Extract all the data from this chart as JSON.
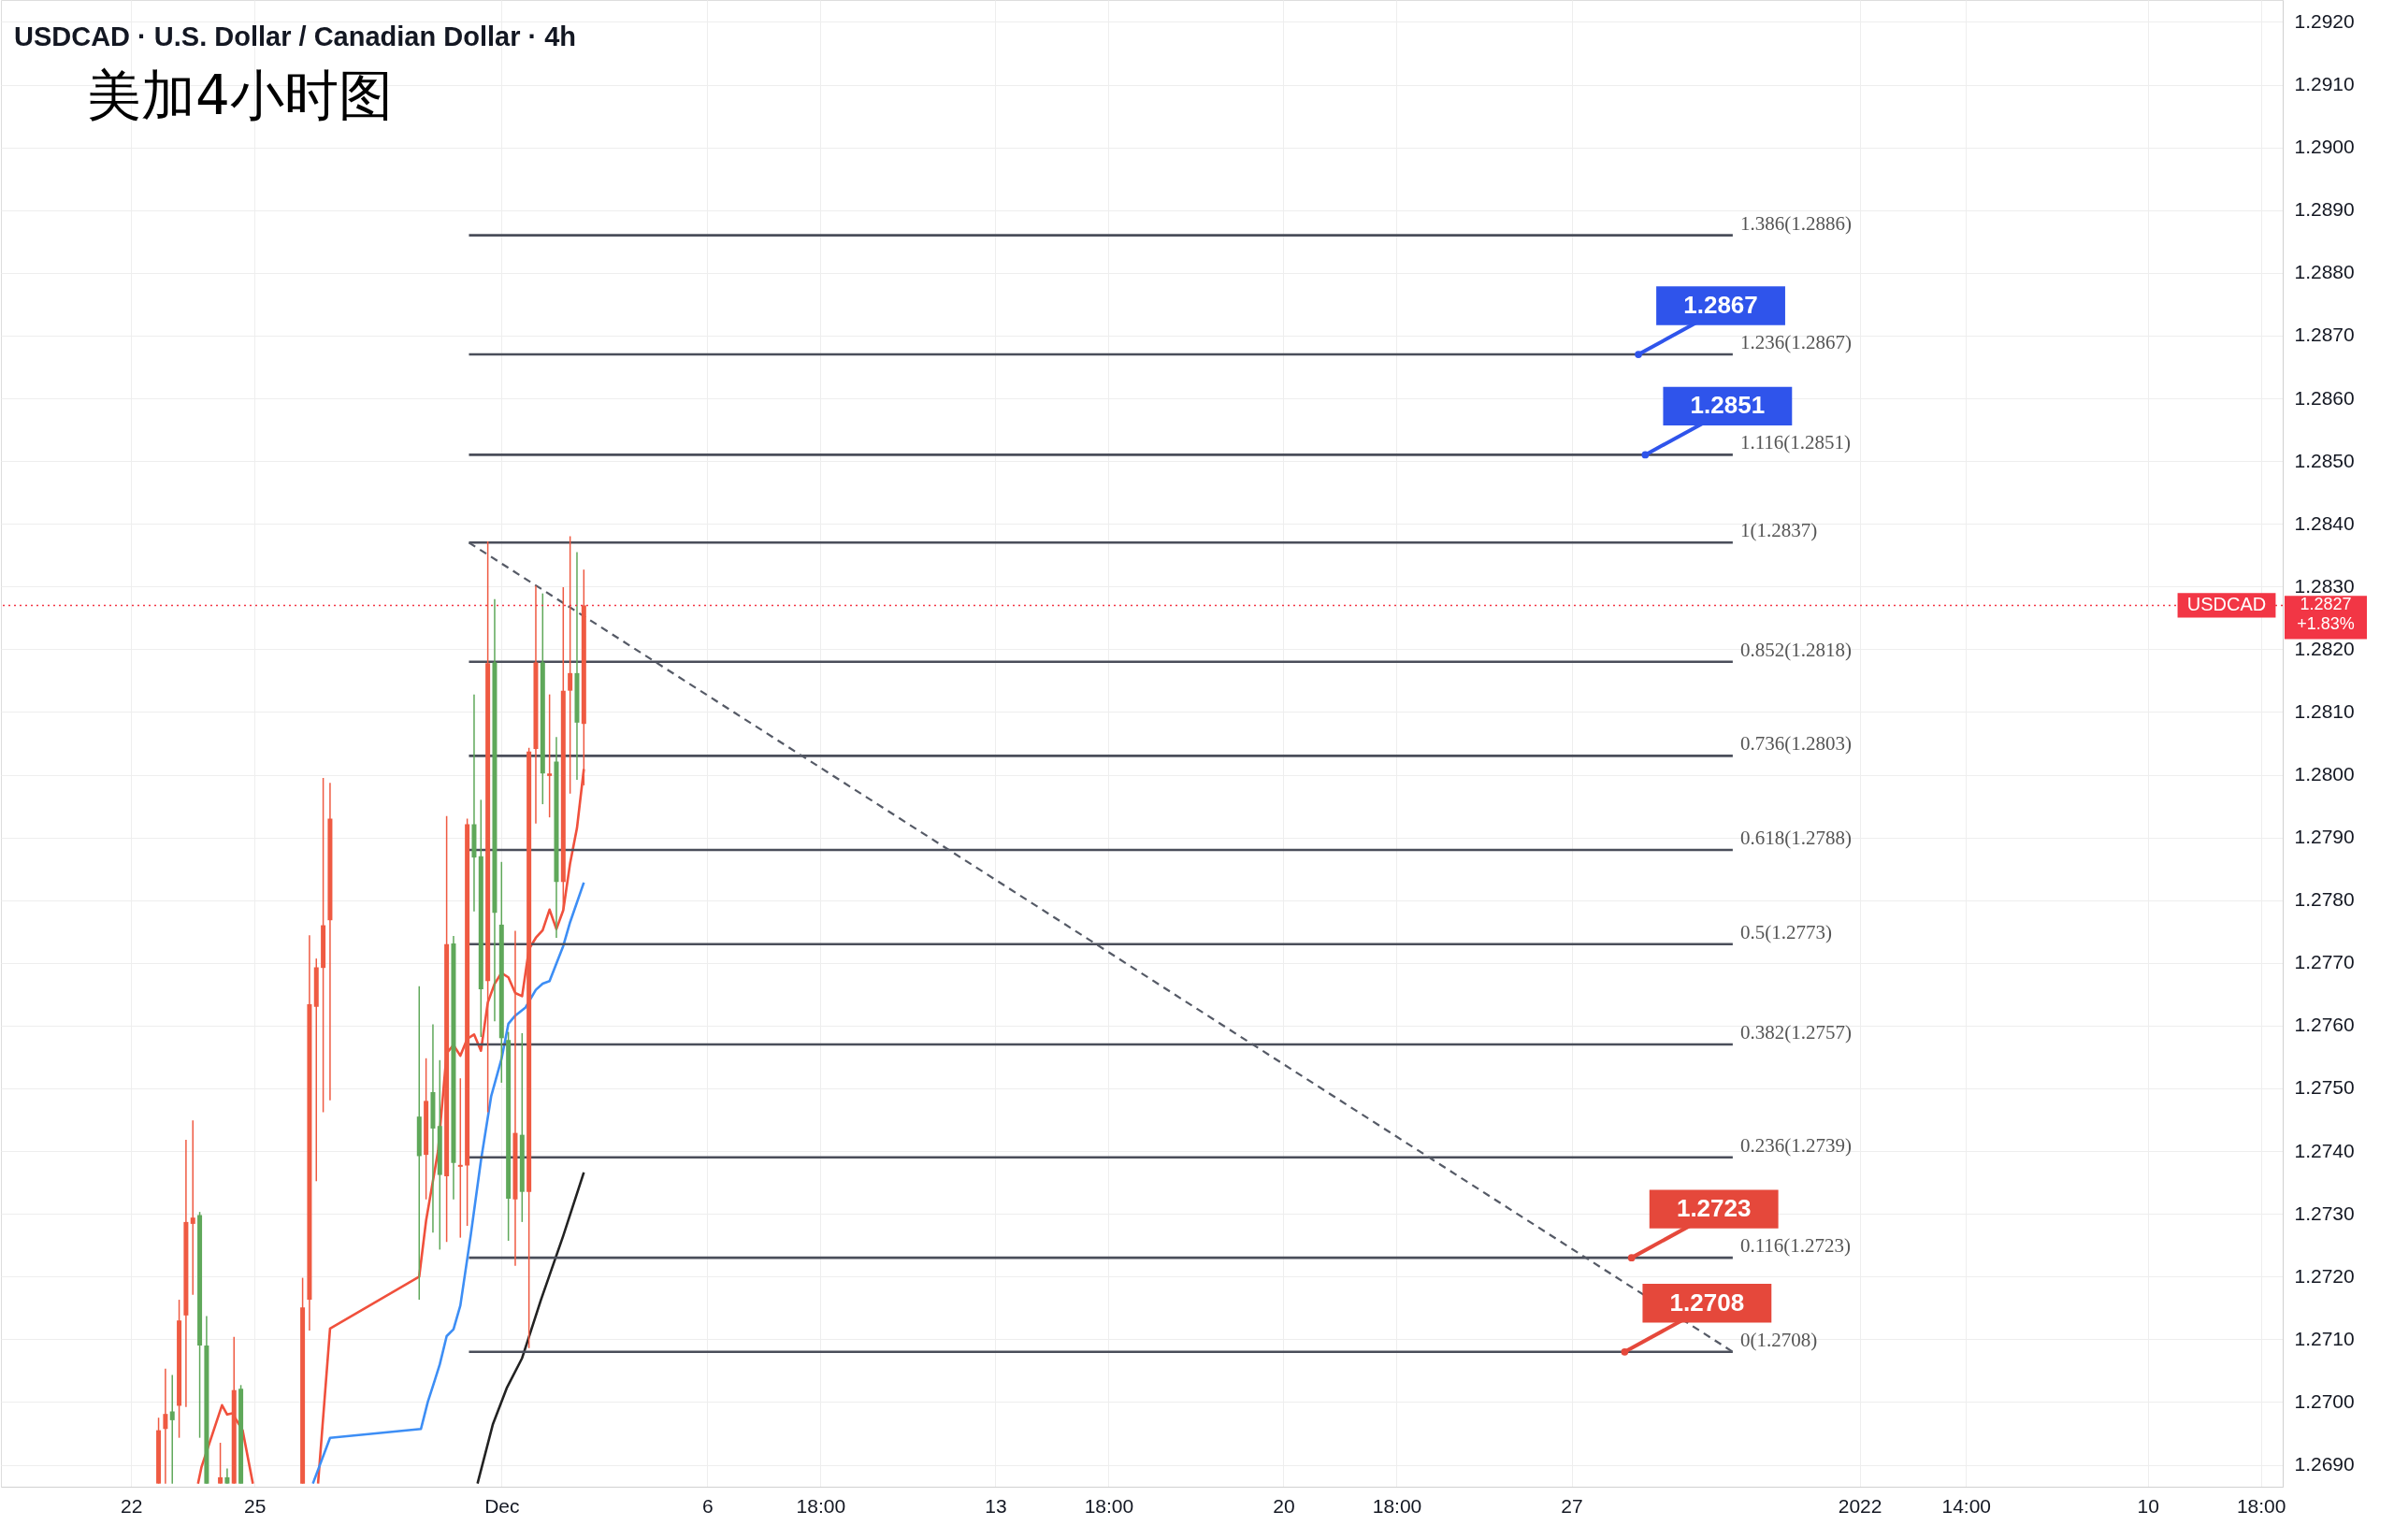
{
  "chart_data": {
    "type": "candlestick",
    "title": "USDCAD · U.S. Dollar / Canadian Dollar · 4h",
    "subtitle": "美加4小时图",
    "xlim": [
      "2021-11-18T22:48",
      "2022-01-13T04:00"
    ],
    "ylim": [
      1.26865,
      1.29235
    ],
    "xticks": [
      {
        "value": "2021-11-22",
        "label": "22"
      },
      {
        "value": "2021-11-25",
        "label": "25"
      },
      {
        "value": "2021-12-01",
        "label": "Dec"
      },
      {
        "value": "2021-12-06",
        "label": "6"
      },
      {
        "value": "2021-12-08T18:00",
        "label": "18:00"
      },
      {
        "value": "2021-12-13",
        "label": "13"
      },
      {
        "value": "2021-12-15T18:00",
        "label": "18:00"
      },
      {
        "value": "2021-12-20",
        "label": "20"
      },
      {
        "value": "2021-12-22T18:00",
        "label": "18:00"
      },
      {
        "value": "2021-12-27",
        "label": "27"
      },
      {
        "value": "2022-01-03",
        "label": "2022"
      },
      {
        "value": "2022-01-05T14:00",
        "label": "14:00"
      },
      {
        "value": "2022-01-10",
        "label": "10"
      },
      {
        "value": "2022-01-12T18:00",
        "label": "18:00"
      }
    ],
    "yticks": [
      {
        "value": 1.269,
        "label": "1.2690"
      },
      {
        "value": 1.27,
        "label": "1.2700"
      },
      {
        "value": 1.271,
        "label": "1.2710"
      },
      {
        "value": 1.272,
        "label": "1.2720"
      },
      {
        "value": 1.273,
        "label": "1.2730"
      },
      {
        "value": 1.274,
        "label": "1.2740"
      },
      {
        "value": 1.275,
        "label": "1.2750"
      },
      {
        "value": 1.276,
        "label": "1.2760"
      },
      {
        "value": 1.277,
        "label": "1.2770"
      },
      {
        "value": 1.278,
        "label": "1.2780"
      },
      {
        "value": 1.279,
        "label": "1.2790"
      },
      {
        "value": 1.28,
        "label": "1.2800"
      },
      {
        "value": 1.281,
        "label": "1.2810"
      },
      {
        "value": 1.282,
        "label": "1.2820"
      },
      {
        "value": 1.283,
        "label": "1.2830"
      },
      {
        "value": 1.284,
        "label": "1.2840"
      },
      {
        "value": 1.285,
        "label": "1.2850"
      },
      {
        "value": 1.286,
        "label": "1.2860"
      },
      {
        "value": 1.287,
        "label": "1.2870"
      },
      {
        "value": 1.288,
        "label": "1.2880"
      },
      {
        "value": 1.289,
        "label": "1.2890"
      },
      {
        "value": 1.29,
        "label": "1.2900"
      },
      {
        "value": 1.291,
        "label": "1.2910"
      },
      {
        "value": 1.292,
        "label": "1.2920"
      }
    ],
    "grid": true,
    "series": [
      {
        "type": "candlestick",
        "x": [
          "2021-11-22T16:00",
          "2021-11-22T20:00",
          "2021-11-23T00:00",
          "2021-11-23T04:00",
          "2021-11-23T08:00",
          "2021-11-23T12:00",
          "2021-11-23T16:00",
          "2021-11-23T20:00",
          "2021-11-24T04:00",
          "2021-11-24T08:00",
          "2021-11-24T12:00",
          "2021-11-24T16:00",
          "2021-11-26T04:00",
          "2021-11-26T08:00",
          "2021-11-26T12:00",
          "2021-11-26T16:00",
          "2021-11-26T20:00",
          "2021-11-29T00:00",
          "2021-11-29T04:00",
          "2021-11-29T08:00",
          "2021-11-29T12:00",
          "2021-11-29T16:00",
          "2021-11-29T20:00",
          "2021-11-30T00:00",
          "2021-11-30T04:00",
          "2021-11-30T08:00",
          "2021-11-30T12:00",
          "2021-11-30T16:00",
          "2021-11-30T20:00",
          "2021-12-01T00:00",
          "2021-12-01T04:00",
          "2021-12-01T08:00",
          "2021-12-01T12:00",
          "2021-12-01T16:00",
          "2021-12-01T20:00",
          "2021-12-02T00:00",
          "2021-12-02T04:00",
          "2021-12-02T08:00",
          "2021-12-02T12:00",
          "2021-12-02T16:00",
          "2021-12-02T20:00",
          "2021-12-03T00:00"
        ],
        "ohlc": [
          [
            1.2687,
            1.26975,
            1.2687,
            1.26955
          ],
          [
            1.26957,
            1.27053,
            1.2687,
            1.26981
          ],
          [
            1.26985,
            1.27043,
            1.2687,
            1.26971
          ],
          [
            1.26994,
            1.27163,
            1.26943,
            1.2713
          ],
          [
            1.27138,
            1.27418,
            1.26992,
            1.27287
          ],
          [
            1.27284,
            1.27449,
            1.27171,
            1.27294
          ],
          [
            1.27298,
            1.27303,
            1.26943,
            1.2709
          ],
          [
            1.2709,
            1.27137,
            1.2687,
            1.2687
          ],
          [
            1.2687,
            1.26935,
            1.2687,
            1.2688
          ],
          [
            1.2688,
            1.26894,
            1.2687,
            1.2687
          ],
          [
            1.2687,
            1.27104,
            1.2687,
            1.27019
          ],
          [
            1.27021,
            1.27027,
            1.2687,
            1.2687
          ],
          [
            1.2687,
            1.27198,
            1.2687,
            1.27151
          ],
          [
            1.27163,
            1.27744,
            1.27114,
            1.27634
          ],
          [
            1.2763,
            1.27707,
            1.27352,
            1.27693
          ],
          [
            1.27692,
            1.27995,
            1.27462,
            1.2776
          ],
          [
            1.27768,
            1.27987,
            1.27481,
            1.2793
          ],
          [
            1.27455,
            1.27663,
            1.27163,
            1.27392
          ],
          [
            1.27394,
            1.27548,
            1.27323,
            1.2748
          ],
          [
            1.27494,
            1.27602,
            1.2727,
            1.27436
          ],
          [
            1.2744,
            1.27545,
            1.27243,
            1.27362
          ],
          [
            1.2736,
            1.27934,
            1.27255,
            1.2773
          ],
          [
            1.27731,
            1.27743,
            1.27323,
            1.27381
          ],
          [
            1.27375,
            1.27516,
            1.27262,
            1.27378
          ],
          [
            1.27377,
            1.2793,
            1.27281,
            1.27921
          ],
          [
            1.27921,
            1.28128,
            1.27782,
            1.27868
          ],
          [
            1.2787,
            1.2796,
            1.27582,
            1.27658
          ],
          [
            1.27671,
            1.28372,
            1.27462,
            1.28178
          ],
          [
            1.28179,
            1.2828,
            1.27607,
            1.2778
          ],
          [
            1.27761,
            1.27861,
            1.27509,
            1.2758
          ],
          [
            1.27577,
            1.2759,
            1.27257,
            1.27324
          ],
          [
            1.27323,
            1.27751,
            1.27217,
            1.27429
          ],
          [
            1.27426,
            1.27588,
            1.27287,
            1.27335
          ],
          [
            1.27335,
            1.28043,
            1.27086,
            1.28037
          ],
          [
            1.28041,
            1.28301,
            1.27922,
            1.28179
          ],
          [
            1.28179,
            1.28289,
            1.27953,
            1.28002
          ],
          [
            1.27998,
            1.28128,
            1.27932,
            1.28002
          ],
          [
            1.28021,
            1.2806,
            1.2774,
            1.27829
          ],
          [
            1.27829,
            1.28299,
            1.27785,
            1.28134
          ],
          [
            1.28134,
            1.2838,
            1.2797,
            1.28162
          ],
          [
            1.28162,
            1.28355,
            1.27992,
            1.28083
          ],
          [
            1.28081,
            1.28327,
            1.27983,
            1.2827
          ]
        ],
        "colors": [
          "#ef5a42",
          "#ef5a42",
          "#5fa85a",
          "#ef5a42",
          "#ef5a42",
          "#ef5a42",
          "#5fa85a",
          "#5fa85a",
          "#ef5a42",
          "#5fa85a",
          "#ef5a42",
          "#5fa85a",
          "#ef5a42",
          "#ef5a42",
          "#ef5a42",
          "#ef5a42",
          "#ef5a42",
          "#5fa85a",
          "#ef5a42",
          "#5fa85a",
          "#5fa85a",
          "#ef5a42",
          "#5fa85a",
          "#ef5a42",
          "#ef5a42",
          "#5fa85a",
          "#5fa85a",
          "#ef5a42",
          "#5fa85a",
          "#5fa85a",
          "#5fa85a",
          "#ef5a42",
          "#5fa85a",
          "#ef5a42",
          "#ef5a42",
          "#5fa85a",
          "#ef5a42",
          "#5fa85a",
          "#ef5a42",
          "#ef5a42",
          "#5fa85a",
          "#ef5a42"
        ]
      },
      {
        "type": "line",
        "color": "#f0503c",
        "x": [
          "2021-11-23T15:00",
          "2021-11-23T17:00",
          "2021-11-24T05:00",
          "2021-11-24T08:00",
          "2021-11-24T11:00",
          "2021-11-24T17:00",
          "2021-11-24T23:00",
          "2021-11-25T12:00",
          "2021-11-26T13:00",
          "2021-11-26T20:00",
          "2021-11-29T00:00",
          "2021-11-29T04:00",
          "2021-11-29T11:00",
          "2021-11-29T16:00",
          "2021-11-29T20:00",
          "2021-11-30T00:00",
          "2021-11-30T04:00",
          "2021-11-30T08:00",
          "2021-11-30T12:00",
          "2021-11-30T16:00",
          "2021-11-30T20:00",
          "2021-12-01T00:00",
          "2021-12-01T04:00",
          "2021-12-01T08:00",
          "2021-12-01T12:00",
          "2021-12-01T16:00",
          "2021-12-01T20:00",
          "2021-12-02T00:00",
          "2021-12-02T04:00",
          "2021-12-02T08:00",
          "2021-12-02T12:00",
          "2021-12-02T16:00",
          "2021-12-02T20:00",
          "2021-12-03T00:00"
        ],
        "values": [
          1.2687,
          1.26896,
          1.26995,
          1.2698,
          1.26982,
          1.26955,
          1.2687,
          null,
          1.2687,
          1.27117,
          1.272,
          1.27289,
          1.274,
          1.27556,
          1.27569,
          1.27552,
          1.27579,
          1.27586,
          1.2756,
          1.27637,
          1.27667,
          1.27684,
          1.27677,
          1.27652,
          1.27647,
          1.27722,
          1.2774,
          1.27752,
          1.27785,
          1.27754,
          1.27784,
          1.27859,
          1.27915,
          1.28009
        ]
      },
      {
        "type": "line",
        "color": "#3d8ef5",
        "x": [
          "2021-11-26T10:00",
          "2021-11-26T20:00",
          "2021-11-29T01:00",
          "2021-11-29T05:00",
          "2021-11-29T09:00",
          "2021-11-29T12:00",
          "2021-11-29T16:00",
          "2021-11-29T20:00",
          "2021-11-30T00:00",
          "2021-11-30T06:00",
          "2021-11-30T12:00",
          "2021-11-30T18:00",
          "2021-12-01T00:00",
          "2021-12-01T04:00",
          "2021-12-01T08:00",
          "2021-12-01T14:00",
          "2021-12-01T20:00",
          "2021-12-02T00:00",
          "2021-12-02T04:00",
          "2021-12-02T12:00",
          "2021-12-02T16:00",
          "2021-12-03T00:00"
        ],
        "values": [
          1.2687,
          1.26943,
          1.26957,
          1.27,
          1.27034,
          1.2706,
          1.27105,
          1.27116,
          1.27154,
          1.27265,
          1.27385,
          1.27488,
          1.27547,
          1.27603,
          1.27616,
          1.27629,
          1.27657,
          1.27667,
          1.27671,
          1.27727,
          1.27765,
          1.27828
        ]
      },
      {
        "type": "line",
        "color": "#222222",
        "x": [
          "2021-11-30T10:00",
          "2021-11-30T19:00",
          "2021-12-01T03:00",
          "2021-12-01T12:00",
          "2021-12-01T23:00",
          "2021-12-02T12:00",
          "2021-12-03T00:00"
        ],
        "values": [
          1.2687,
          1.26965,
          1.27022,
          1.2707,
          1.27163,
          1.27265,
          1.27366
        ]
      },
      {
        "type": "line",
        "color": "#4a4e5a",
        "x": [
          "2021-11-30T05:00",
          "2021-12-30T22:00"
        ],
        "values": [
          1.2886,
          1.2886
        ]
      },
      {
        "type": "line",
        "color": "#4a4e5a",
        "x": [
          "2021-11-30T05:00",
          "2021-12-30T22:00"
        ],
        "values": [
          1.2867,
          1.2867
        ]
      },
      {
        "type": "line",
        "color": "#4a4e5a",
        "x": [
          "2021-11-30T05:00",
          "2021-12-30T22:00"
        ],
        "values": [
          1.2851,
          1.2851
        ]
      },
      {
        "type": "line",
        "color": "#4a4e5a",
        "x": [
          "2021-11-30T05:00",
          "2021-12-30T22:00"
        ],
        "values": [
          1.2837,
          1.2837
        ]
      },
      {
        "type": "line",
        "color": "#4a4e5a",
        "x": [
          "2021-11-30T05:00",
          "2021-12-30T22:00"
        ],
        "values": [
          1.2818,
          1.2818
        ]
      },
      {
        "type": "line",
        "color": "#4a4e5a",
        "x": [
          "2021-11-30T05:00",
          "2021-12-30T22:00"
        ],
        "values": [
          1.2803,
          1.2803
        ]
      },
      {
        "type": "line",
        "color": "#4a4e5a",
        "x": [
          "2021-11-30T05:00",
          "2021-12-30T22:00"
        ],
        "values": [
          1.2788,
          1.2788
        ]
      },
      {
        "type": "line",
        "color": "#4a4e5a",
        "x": [
          "2021-11-30T05:00",
          "2021-12-30T22:00"
        ],
        "values": [
          1.2773,
          1.2773
        ]
      },
      {
        "type": "line",
        "color": "#4a4e5a",
        "x": [
          "2021-11-30T05:00",
          "2021-12-30T22:00"
        ],
        "values": [
          1.2757,
          1.2757
        ]
      },
      {
        "type": "line",
        "color": "#4a4e5a",
        "x": [
          "2021-11-30T05:00",
          "2021-12-30T22:00"
        ],
        "values": [
          1.2739,
          1.2739
        ]
      },
      {
        "type": "line",
        "color": "#4a4e5a",
        "x": [
          "2021-11-30T05:00",
          "2021-12-30T22:00"
        ],
        "values": [
          1.2723,
          1.2723
        ]
      },
      {
        "type": "line",
        "color": "#4a4e5a",
        "x": [
          "2021-11-30T05:00",
          "2021-12-30T22:00"
        ],
        "values": [
          1.2708,
          1.2708
        ]
      },
      {
        "type": "line",
        "color": "#555a66",
        "line_style": "dashed",
        "x": [
          "2021-11-30T05:00",
          "2021-12-30T22:00"
        ],
        "values": [
          1.2837,
          1.2708
        ]
      },
      {
        "type": "scatter",
        "color": "#2f54eb",
        "x": [
          "2021-12-28T15:00",
          "2021-12-28T19:00"
        ],
        "values": [
          1.2867,
          1.2851
        ],
        "value_labels": [
          "1.2867",
          "1.2851"
        ]
      },
      {
        "type": "scatter",
        "color": "#e5483b",
        "x": [
          "2021-12-28T11:00",
          "2021-12-28T07:00"
        ],
        "values": [
          1.2723,
          1.2708
        ],
        "value_labels": [
          "1.2723",
          "1.2708"
        ]
      }
    ],
    "ref_lines": [
      {
        "axis": "y",
        "value": 1.2827,
        "label": "USDCAD",
        "color": "#f23645",
        "line_style": "dotted"
      }
    ],
    "annotations": [
      "1.2827",
      "+1.83%",
      {
        "text": "1.386(1.2886)",
        "x": "2021-12-30T22:00",
        "y": 1.2886
      },
      {
        "text": "1.236(1.2867)",
        "x": "2021-12-30T22:00",
        "y": 1.2867
      },
      {
        "text": "1.116(1.2851)",
        "x": "2021-12-30T22:00",
        "y": 1.2851
      },
      {
        "text": "1(1.2837)",
        "x": "2021-12-30T22:00",
        "y": 1.2837
      },
      {
        "text": "0.852(1.2818)",
        "x": "2021-12-30T22:00",
        "y": 1.2818
      },
      {
        "text": "0.736(1.2803)",
        "x": "2021-12-30T22:00",
        "y": 1.2803
      },
      {
        "text": "0.618(1.2788)",
        "x": "2021-12-30T22:00",
        "y": 1.2788
      },
      {
        "text": "0.5(1.2773)",
        "x": "2021-12-30T22:00",
        "y": 1.2773
      },
      {
        "text": "0.382(1.2757)",
        "x": "2021-12-30T22:00",
        "y": 1.2757
      },
      {
        "text": "0.236(1.2739)",
        "x": "2021-12-30T22:00",
        "y": 1.2739
      },
      {
        "text": "0.116(1.2723)",
        "x": "2021-12-30T22:00",
        "y": 1.2723
      },
      {
        "text": "0(1.2708)",
        "x": "2021-12-30T22:00",
        "y": 1.2708
      }
    ]
  }
}
